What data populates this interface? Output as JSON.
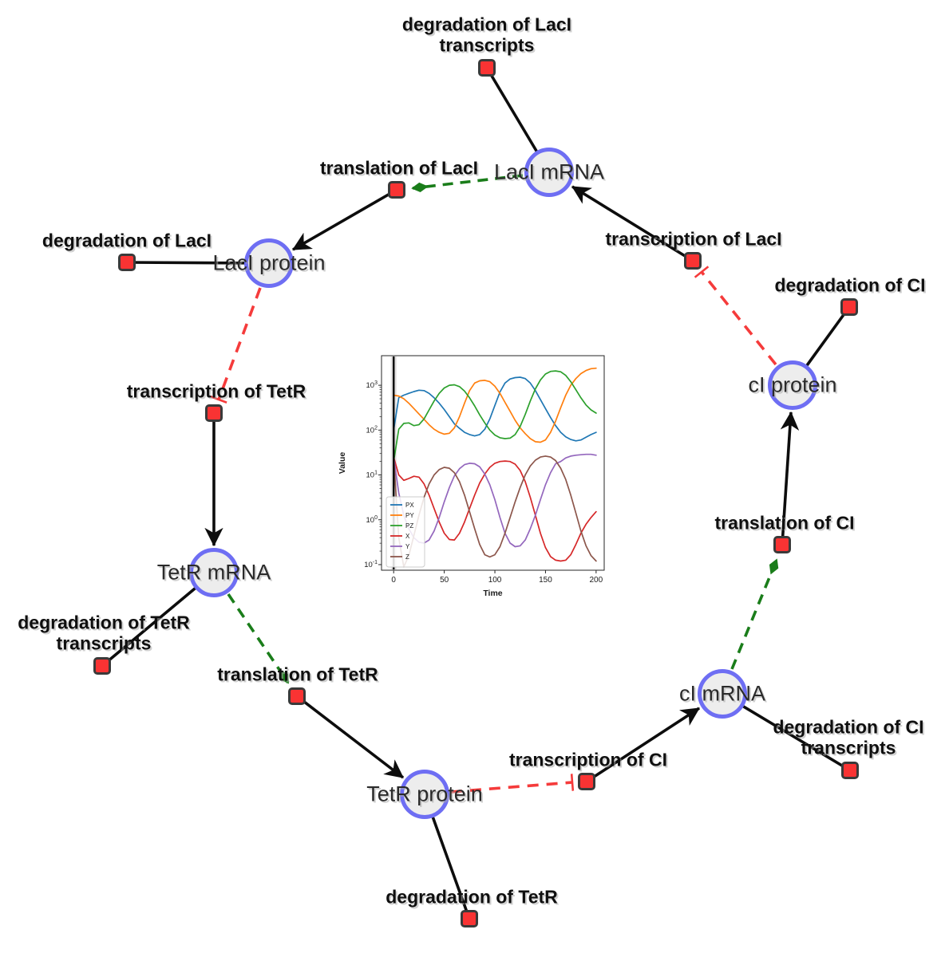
{
  "diagram": {
    "species_nodes": [
      {
        "label": "LacI mRNA"
      },
      {
        "label": "LacI protein"
      },
      {
        "label": "TetR mRNA"
      },
      {
        "label": "TetR protein"
      },
      {
        "label": "cI mRNA"
      },
      {
        "label": "cI protein"
      }
    ],
    "reaction_nodes": [
      {
        "label": "degradation of LacI\ntranscripts"
      },
      {
        "label": "translation of LacI"
      },
      {
        "label": "degradation of LacI"
      },
      {
        "label": "transcription of TetR"
      },
      {
        "label": "degradation of TetR\ntranscripts"
      },
      {
        "label": "translation of TetR"
      },
      {
        "label": "degradation of TetR"
      },
      {
        "label": "transcription of CI"
      },
      {
        "label": "degradation of CI\ntranscripts"
      },
      {
        "label": "translation of CI"
      },
      {
        "label": "degradation of CI"
      },
      {
        "label": "transcription of LacI"
      }
    ],
    "colors": {
      "species_fill": "#ededed",
      "species_border": "#6e6ef3",
      "reaction_fill": "#f93333",
      "reaction_border": "#3a3a3a",
      "product_edge": "#0d0d0d",
      "inhibition_edge": "#f53b3b",
      "modifier_edge": "#1a7d1a"
    }
  },
  "chart_data": {
    "type": "line",
    "title": "",
    "xlabel": "Time",
    "ylabel": "Value",
    "legend_position": "lower left",
    "grid": false,
    "x_axis": {
      "min": -12,
      "max": 208,
      "ticks": [
        0,
        50,
        100,
        150,
        200
      ],
      "label": "Time"
    },
    "y_axis": {
      "scale": "log",
      "log_min": -1.125,
      "log_max": 3.66,
      "tick_exponents": [
        -1,
        0,
        1,
        2,
        3
      ],
      "label": "Value"
    },
    "initial_event_line_x": 0,
    "values_are": "log10(Value); actual value = 10^v",
    "t": [
      0,
      5,
      10,
      15,
      20,
      25,
      30,
      35,
      40,
      45,
      50,
      55,
      60,
      65,
      70,
      75,
      80,
      85,
      90,
      95,
      100,
      105,
      110,
      115,
      120,
      125,
      130,
      135,
      140,
      145,
      150,
      155,
      160,
      165,
      170,
      175,
      180,
      185,
      190,
      195,
      200
    ],
    "series": [
      {
        "name": "PX",
        "color": "#1f77b4",
        "values_log10": [
          2.0,
          2.72,
          2.78,
          2.82,
          2.86,
          2.89,
          2.88,
          2.82,
          2.72,
          2.6,
          2.46,
          2.3,
          2.14,
          2.04,
          1.95,
          1.9,
          1.87,
          1.9,
          2.02,
          2.25,
          2.55,
          2.85,
          3.05,
          3.14,
          3.17,
          3.18,
          3.15,
          3.05,
          2.88,
          2.68,
          2.48,
          2.28,
          2.1,
          1.95,
          1.85,
          1.79,
          1.76,
          1.78,
          1.84,
          1.9,
          1.95
        ]
      },
      {
        "name": "PY",
        "color": "#ff7f0e",
        "values_log10": [
          2.78,
          2.76,
          2.7,
          2.6,
          2.48,
          2.36,
          2.24,
          2.12,
          2.02,
          1.95,
          1.91,
          1.93,
          2.05,
          2.3,
          2.6,
          2.88,
          3.05,
          3.1,
          3.11,
          3.08,
          2.98,
          2.82,
          2.62,
          2.42,
          2.22,
          2.05,
          1.92,
          1.81,
          1.74,
          1.73,
          1.78,
          1.95,
          2.2,
          2.5,
          2.78,
          3.0,
          3.15,
          3.26,
          3.33,
          3.37,
          3.38
        ]
      },
      {
        "name": "PZ",
        "color": "#2ca02c",
        "values_log10": [
          1.3,
          2.02,
          2.15,
          2.16,
          2.1,
          2.12,
          2.25,
          2.45,
          2.65,
          2.82,
          2.94,
          3.0,
          3.01,
          2.97,
          2.87,
          2.72,
          2.54,
          2.34,
          2.16,
          2.0,
          1.89,
          1.83,
          1.81,
          1.82,
          1.9,
          2.08,
          2.35,
          2.65,
          2.92,
          3.12,
          3.25,
          3.31,
          3.32,
          3.3,
          3.22,
          3.08,
          2.9,
          2.72,
          2.56,
          2.45,
          2.38
        ]
      },
      {
        "name": "X",
        "color": "#d62728",
        "values_log10": [
          1.4,
          1.0,
          0.88,
          0.92,
          0.97,
          0.95,
          0.8,
          0.55,
          0.25,
          -0.05,
          -0.3,
          -0.44,
          -0.45,
          -0.3,
          -0.05,
          0.25,
          0.55,
          0.82,
          1.02,
          1.17,
          1.26,
          1.3,
          1.31,
          1.3,
          1.24,
          1.1,
          0.85,
          0.5,
          0.1,
          -0.3,
          -0.62,
          -0.82,
          -0.9,
          -0.92,
          -0.9,
          -0.78,
          -0.55,
          -0.3,
          -0.1,
          0.05,
          0.18
        ]
      },
      {
        "name": "Y",
        "color": "#9467bd",
        "values_log10": [
          1.4,
          0.6,
          0.1,
          -0.2,
          -0.4,
          -0.5,
          -0.52,
          -0.45,
          -0.25,
          0.05,
          0.4,
          0.72,
          0.98,
          1.14,
          1.23,
          1.26,
          1.25,
          1.18,
          1.02,
          0.78,
          0.45,
          0.05,
          -0.3,
          -0.52,
          -0.6,
          -0.58,
          -0.45,
          -0.2,
          0.1,
          0.45,
          0.78,
          1.05,
          1.25,
          1.3,
          1.38,
          1.42,
          1.44,
          1.45,
          1.46,
          1.46,
          1.44
        ]
      },
      {
        "name": "Z",
        "color": "#8c564b",
        "values_log10": [
          1.4,
          -0.4,
          -1.05,
          -0.8,
          -0.35,
          0.1,
          0.5,
          0.8,
          1.0,
          1.12,
          1.17,
          1.15,
          1.05,
          0.85,
          0.55,
          0.18,
          -0.2,
          -0.55,
          -0.78,
          -0.83,
          -0.78,
          -0.6,
          -0.3,
          0.05,
          0.4,
          0.72,
          1.0,
          1.2,
          1.33,
          1.4,
          1.42,
          1.4,
          1.32,
          1.15,
          0.9,
          0.55,
          0.15,
          -0.25,
          -0.58,
          -0.8,
          -0.92
        ]
      }
    ]
  }
}
